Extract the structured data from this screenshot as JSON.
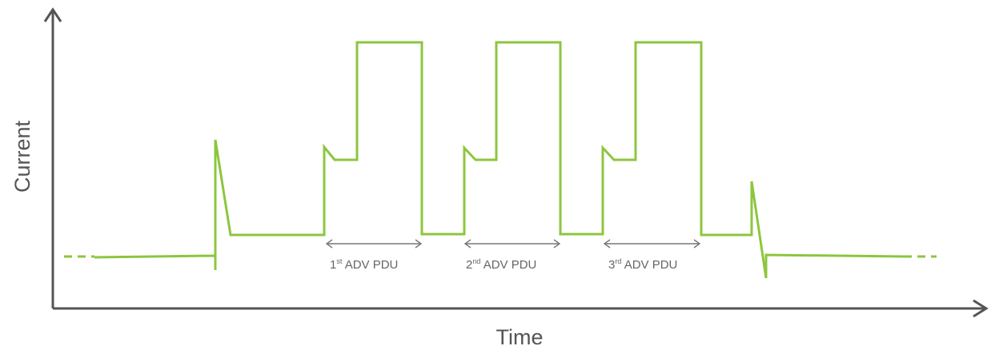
{
  "axes": {
    "y_title": "Current",
    "x_title": "Time"
  },
  "pdu_labels": [
    {
      "num": "1",
      "sup": "st",
      "text": " ADV PDU"
    },
    {
      "num": "2",
      "sup": "nd",
      "text": " ADV PDU"
    },
    {
      "num": "3",
      "sup": "rd",
      "text": " ADV PDU"
    }
  ],
  "colors": {
    "waveform": "#8cc63e",
    "axis": "#555555",
    "annotation": "#777777"
  }
}
